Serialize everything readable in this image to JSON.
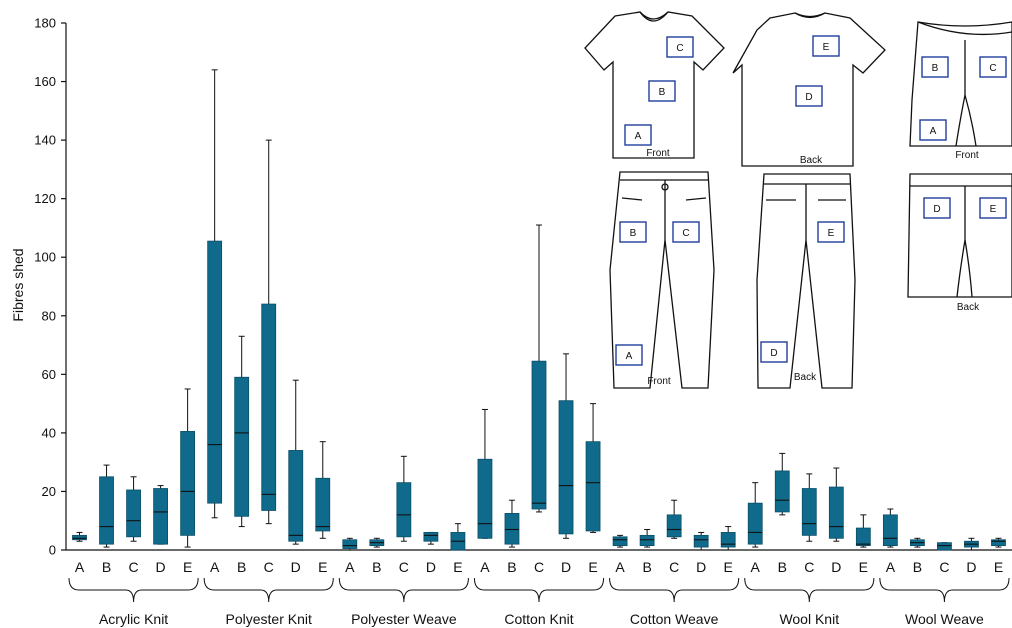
{
  "chart_data": {
    "type": "box",
    "ylabel": "Fibres shed",
    "ylim": [
      0,
      180
    ],
    "yticks": [
      0,
      20,
      40,
      60,
      80,
      100,
      120,
      140,
      160,
      180
    ],
    "box_color": "#0f6a8b",
    "groups": [
      {
        "name": "Acrylic Knit",
        "boxes": [
          {
            "pos": "A",
            "min": 3,
            "q1": 3.5,
            "median": 4,
            "q3": 5,
            "max": 6
          },
          {
            "pos": "B",
            "min": 1,
            "q1": 2,
            "median": 8,
            "q3": 25,
            "max": 29
          },
          {
            "pos": "C",
            "min": 3,
            "q1": 4.5,
            "median": 10,
            "q3": 20.5,
            "max": 25
          },
          {
            "pos": "D",
            "min": 2,
            "q1": 2,
            "median": 13,
            "q3": 21,
            "max": 22
          },
          {
            "pos": "E",
            "min": 1,
            "q1": 5,
            "median": 20,
            "q3": 40.5,
            "max": 55
          }
        ]
      },
      {
        "name": "Polyester Knit",
        "boxes": [
          {
            "pos": "A",
            "min": 11,
            "q1": 16,
            "median": 36,
            "q3": 105.5,
            "max": 164
          },
          {
            "pos": "B",
            "min": 8,
            "q1": 11.5,
            "median": 40,
            "q3": 59,
            "max": 73
          },
          {
            "pos": "C",
            "min": 9,
            "q1": 13.5,
            "median": 19,
            "q3": 84,
            "max": 140
          },
          {
            "pos": "D",
            "min": 2,
            "q1": 3,
            "median": 5,
            "q3": 34,
            "max": 58
          },
          {
            "pos": "E",
            "min": 4,
            "q1": 6.5,
            "median": 8,
            "q3": 24.5,
            "max": 37
          }
        ]
      },
      {
        "name": "Polyester Weave",
        "boxes": [
          {
            "pos": "A",
            "min": 0,
            "q1": 0.5,
            "median": 1.5,
            "q3": 3.5,
            "max": 4
          },
          {
            "pos": "B",
            "min": 1,
            "q1": 1.5,
            "median": 2.5,
            "q3": 3.5,
            "max": 4
          },
          {
            "pos": "C",
            "min": 3,
            "q1": 4.5,
            "median": 12,
            "q3": 23,
            "max": 32
          },
          {
            "pos": "D",
            "min": 2,
            "q1": 3,
            "median": 5,
            "q3": 6,
            "max": 6
          },
          {
            "pos": "E",
            "min": 0,
            "q1": 0,
            "median": 3,
            "q3": 6,
            "max": 9
          }
        ]
      },
      {
        "name": "Cotton Knit",
        "boxes": [
          {
            "pos": "A",
            "min": 4,
            "q1": 4,
            "median": 9,
            "q3": 31,
            "max": 48
          },
          {
            "pos": "B",
            "min": 1,
            "q1": 2,
            "median": 7,
            "q3": 12.5,
            "max": 17
          },
          {
            "pos": "C",
            "min": 13,
            "q1": 14,
            "median": 16,
            "q3": 64.5,
            "max": 111
          },
          {
            "pos": "D",
            "min": 4,
            "q1": 5.5,
            "median": 22,
            "q3": 51,
            "max": 67
          },
          {
            "pos": "E",
            "min": 6,
            "q1": 6.5,
            "median": 23,
            "q3": 37,
            "max": 50
          }
        ]
      },
      {
        "name": "Cotton Weave",
        "boxes": [
          {
            "pos": "A",
            "min": 1,
            "q1": 1.5,
            "median": 3.5,
            "q3": 4.5,
            "max": 5
          },
          {
            "pos": "B",
            "min": 1,
            "q1": 1.5,
            "median": 3.5,
            "q3": 5,
            "max": 7
          },
          {
            "pos": "C",
            "min": 4,
            "q1": 4.5,
            "median": 7,
            "q3": 12,
            "max": 17
          },
          {
            "pos": "D",
            "min": 0,
            "q1": 1,
            "median": 3.5,
            "q3": 5,
            "max": 6
          },
          {
            "pos": "E",
            "min": 0,
            "q1": 1,
            "median": 2,
            "q3": 6,
            "max": 8
          }
        ]
      },
      {
        "name": "Wool Knit",
        "boxes": [
          {
            "pos": "A",
            "min": 1,
            "q1": 2,
            "median": 6,
            "q3": 16,
            "max": 23
          },
          {
            "pos": "B",
            "min": 12,
            "q1": 13,
            "median": 17,
            "q3": 27,
            "max": 33
          },
          {
            "pos": "C",
            "min": 3,
            "q1": 5,
            "median": 9,
            "q3": 21,
            "max": 26
          },
          {
            "pos": "D",
            "min": 3,
            "q1": 4,
            "median": 8,
            "q3": 21.5,
            "max": 28
          },
          {
            "pos": "E",
            "min": 1,
            "q1": 1.5,
            "median": 2,
            "q3": 7.5,
            "max": 12
          }
        ]
      },
      {
        "name": "Wool Weave",
        "boxes": [
          {
            "pos": "A",
            "min": 1,
            "q1": 1.5,
            "median": 4,
            "q3": 12,
            "max": 14
          },
          {
            "pos": "B",
            "min": 1,
            "q1": 1.5,
            "median": 2.5,
            "q3": 3.5,
            "max": 4
          },
          {
            "pos": "C",
            "min": 0,
            "q1": 0,
            "median": 1.5,
            "q3": 2.5,
            "max": 2.5
          },
          {
            "pos": "D",
            "min": 0,
            "q1": 1,
            "median": 2,
            "q3": 3,
            "max": 4
          },
          {
            "pos": "E",
            "min": 1,
            "q1": 1.5,
            "median": 3,
            "q3": 3.5,
            "max": 4
          }
        ]
      }
    ]
  },
  "diagram": {
    "front": "Front",
    "back": "Back",
    "letters": [
      "A",
      "B",
      "C",
      "D",
      "E"
    ]
  }
}
